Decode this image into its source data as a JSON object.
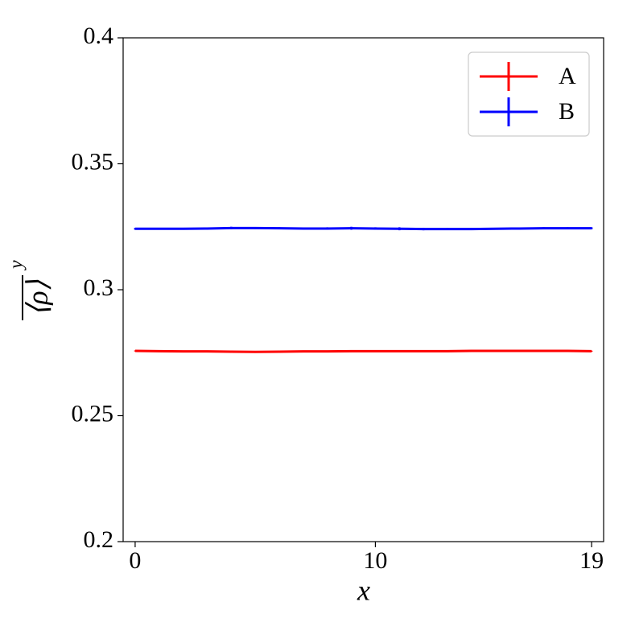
{
  "chart_data": {
    "type": "line",
    "x_label": "x",
    "y_label": "⟨ρ⟩",
    "y_label_superscript": "y",
    "x": [
      0,
      1,
      2,
      3,
      4,
      5,
      6,
      7,
      8,
      9,
      10,
      11,
      12,
      13,
      14,
      15,
      16,
      17,
      18,
      19
    ],
    "series": [
      {
        "name": "A",
        "color": "#ff0000",
        "values": [
          0.2757,
          0.2756,
          0.2755,
          0.2755,
          0.2754,
          0.2753,
          0.2754,
          0.2755,
          0.2755,
          0.2756,
          0.2756,
          0.2756,
          0.2756,
          0.2756,
          0.2757,
          0.2757,
          0.2757,
          0.2757,
          0.2757,
          0.2756
        ],
        "errors": [
          0.0002,
          0.0002,
          0.0002,
          0.0002,
          0.0002,
          0.0002,
          0.0002,
          0.0002,
          0.0002,
          0.0002,
          0.0002,
          0.0002,
          0.0002,
          0.0002,
          0.0002,
          0.0002,
          0.0002,
          0.0002,
          0.0002,
          0.0002
        ]
      },
      {
        "name": "B",
        "color": "#0000ff",
        "values": [
          0.3242,
          0.3242,
          0.3242,
          0.3243,
          0.3245,
          0.3245,
          0.3244,
          0.3243,
          0.3243,
          0.3244,
          0.3243,
          0.3242,
          0.3241,
          0.3241,
          0.3241,
          0.3242,
          0.3243,
          0.3244,
          0.3244,
          0.3244
        ],
        "errors": [
          0.0004,
          0.0004,
          0.0004,
          0.0004,
          0.0005,
          0.0004,
          0.0004,
          0.0004,
          0.0005,
          0.0006,
          0.0005,
          0.0006,
          0.0005,
          0.0004,
          0.0004,
          0.0004,
          0.0004,
          0.0004,
          0.0004,
          0.0004
        ]
      }
    ],
    "xlim": [
      -0.5,
      19.5
    ],
    "xticks": [
      0,
      10,
      19
    ],
    "ylim": [
      0.2,
      0.4
    ],
    "yticks": [
      0.2,
      0.25,
      0.3,
      0.35,
      0.4
    ],
    "grid": false,
    "legend": "upper right"
  }
}
